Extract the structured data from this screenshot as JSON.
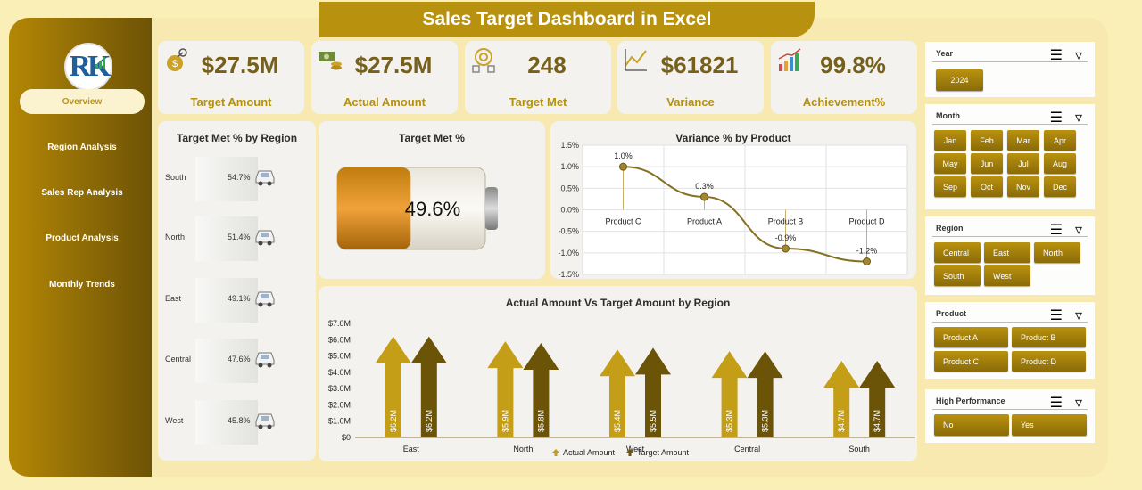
{
  "title": "Sales Target Dashboard in Excel",
  "nav": [
    "Overview",
    "Region Analysis",
    "Sales Rep Analysis",
    "Product Analysis",
    "Monthly Trends"
  ],
  "kpis": [
    {
      "value": "$27.5M",
      "label": "Target Amount",
      "icon": "money-bag-icon"
    },
    {
      "value": "$27.5M",
      "label": "Actual Amount",
      "icon": "cash-coins-icon"
    },
    {
      "value": "248",
      "label": "Target Met",
      "icon": "target-goal-icon"
    },
    {
      "value": "$61821",
      "label": "Variance",
      "icon": "trend-analysis-icon"
    },
    {
      "value": "99.8%",
      "label": "Achievement%",
      "icon": "growth-chart-icon"
    }
  ],
  "region_panel": {
    "title": "Target Met % by Region",
    "rows": [
      {
        "region": "South",
        "pct": "54.7%",
        "value": 54.7
      },
      {
        "region": "North",
        "pct": "51.4%",
        "value": 51.4
      },
      {
        "region": "East",
        "pct": "49.1%",
        "value": 49.1
      },
      {
        "region": "Central",
        "pct": "47.6%",
        "value": 47.6
      },
      {
        "region": "West",
        "pct": "45.8%",
        "value": 45.8
      }
    ]
  },
  "battery": {
    "title": "Target Met %",
    "value_text": "49.6%",
    "fill": 49.6
  },
  "chart_data": [
    {
      "type": "line",
      "title": "Variance % by Product",
      "categories": [
        "Product C",
        "Product A",
        "Product B",
        "Product D"
      ],
      "values": [
        1.0,
        0.3,
        -0.9,
        -1.2
      ],
      "data_labels": [
        "1.0%",
        "0.3%",
        "-0.9%",
        "-1.2%"
      ],
      "ylim": [
        -1.5,
        1.5
      ],
      "y_ticks": [
        "1.5%",
        "1.0%",
        "0.5%",
        "0.0%",
        "-0.5%",
        "-1.0%",
        "-1.5%"
      ],
      "grid": true
    },
    {
      "type": "bar",
      "title": "Actual Amount Vs Target Amount by Region",
      "categories": [
        "East",
        "North",
        "West",
        "Central",
        "South"
      ],
      "series": [
        {
          "name": "Actual Amount",
          "values": [
            6.2,
            5.9,
            5.4,
            5.3,
            4.7
          ],
          "labels": [
            "$6.2M",
            "$5.9M",
            "$5.4M",
            "$5.3M",
            "$4.7M"
          ]
        },
        {
          "name": "Target Amount",
          "values": [
            6.2,
            5.8,
            5.5,
            5.3,
            4.7
          ],
          "labels": [
            "$6.2M",
            "$5.8M",
            "$5.5M",
            "$5.3M",
            "$4.7M"
          ]
        }
      ],
      "ylim": [
        0,
        7
      ],
      "y_ticks": [
        "$7.0M",
        "$6.0M",
        "$5.0M",
        "$4.0M",
        "$3.0M",
        "$2.0M",
        "$1.0M",
        "$0"
      ],
      "legend": "bottom",
      "grid": false
    }
  ],
  "slicers": {
    "year": {
      "title": "Year",
      "items": [
        "2024"
      ]
    },
    "month": {
      "title": "Month",
      "items": [
        "Jan",
        "Feb",
        "Mar",
        "Apr",
        "May",
        "Jun",
        "Jul",
        "Aug",
        "Sep",
        "Oct",
        "Nov",
        "Dec"
      ]
    },
    "region": {
      "title": "Region",
      "items": [
        "Central",
        "East",
        "North",
        "South",
        "West"
      ]
    },
    "product": {
      "title": "Product",
      "items": [
        "Product A",
        "Product B",
        "Product C",
        "Product D"
      ]
    },
    "high_performance": {
      "title": "High Performance",
      "items": [
        "No",
        "Yes"
      ]
    }
  },
  "colors": {
    "gold": "#b8920f",
    "dark_gold": "#6e5306",
    "line": "#857123",
    "arrow_dark": "#6b5407",
    "arrow_light": "#c49e16"
  }
}
